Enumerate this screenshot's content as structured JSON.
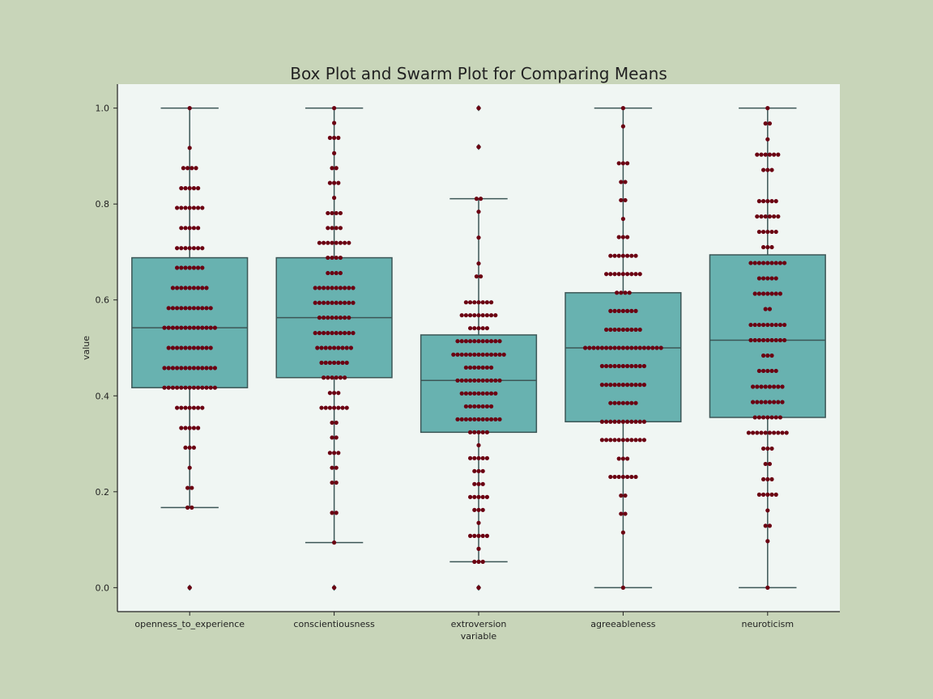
{
  "colors": {
    "background": "#c8d5b9",
    "plot_area": "#f0f6f3",
    "box_fill": "#68b2b0",
    "box_edge": "#3c5656",
    "dot": "#6b0012",
    "axis": "#222222"
  },
  "chart_data": {
    "type": "box+swarm",
    "title": "Box Plot and Swarm Plot for Comparing Means",
    "xlabel": "variable",
    "ylabel": "value",
    "ylim": [
      -0.05,
      1.05
    ],
    "yticks": [
      0.0,
      0.2,
      0.4,
      0.6,
      0.8,
      1.0
    ],
    "ytick_labels": [
      "0.0",
      "0.2",
      "0.4",
      "0.6",
      "0.8",
      "1.0"
    ],
    "grid": false,
    "categories": [
      "openness_to_experience",
      "conscientiousness",
      "extroversion",
      "agreeableness",
      "neuroticism"
    ],
    "boxes": [
      {
        "q1": 0.417,
        "median": 0.542,
        "q3": 0.688,
        "whisker_low": 0.167,
        "whisker_high": 1.0,
        "outliers": [
          0.0
        ]
      },
      {
        "q1": 0.438,
        "median": 0.563,
        "q3": 0.688,
        "whisker_low": 0.094,
        "whisker_high": 1.0,
        "outliers": [
          0.0
        ]
      },
      {
        "q1": 0.324,
        "median": 0.432,
        "q3": 0.527,
        "whisker_low": 0.054,
        "whisker_high": 0.811,
        "outliers": [
          0.0,
          0.919,
          1.0
        ]
      },
      {
        "q1": 0.346,
        "median": 0.5,
        "q3": 0.615,
        "whisker_low": 0.0,
        "whisker_high": 1.0,
        "outliers": []
      },
      {
        "q1": 0.355,
        "median": 0.516,
        "q3": 0.694,
        "whisker_low": 0.0,
        "whisker_high": 1.0,
        "outliers": []
      }
    ],
    "swarm_points": [
      [
        [
          1.0,
          1
        ],
        [
          0.917,
          1
        ],
        [
          0.875,
          4
        ],
        [
          0.833,
          5
        ],
        [
          0.792,
          7
        ],
        [
          0.75,
          5
        ],
        [
          0.708,
          7
        ],
        [
          0.667,
          7
        ],
        [
          0.625,
          9
        ],
        [
          0.583,
          11
        ],
        [
          0.542,
          13
        ],
        [
          0.5,
          11
        ],
        [
          0.458,
          13
        ],
        [
          0.417,
          13
        ],
        [
          0.375,
          7
        ],
        [
          0.333,
          5
        ],
        [
          0.292,
          3
        ],
        [
          0.25,
          1
        ],
        [
          0.208,
          2
        ],
        [
          0.167,
          2
        ],
        [
          0.0,
          1
        ]
      ],
      [
        [
          1.0,
          1
        ],
        [
          0.969,
          1
        ],
        [
          0.938,
          3
        ],
        [
          0.906,
          1
        ],
        [
          0.875,
          2
        ],
        [
          0.844,
          3
        ],
        [
          0.813,
          1
        ],
        [
          0.781,
          4
        ],
        [
          0.75,
          4
        ],
        [
          0.719,
          8
        ],
        [
          0.688,
          4
        ],
        [
          0.656,
          4
        ],
        [
          0.625,
          10
        ],
        [
          0.594,
          10
        ],
        [
          0.563,
          8
        ],
        [
          0.531,
          10
        ],
        [
          0.5,
          9
        ],
        [
          0.469,
          7
        ],
        [
          0.438,
          6
        ],
        [
          0.406,
          3
        ],
        [
          0.375,
          7
        ],
        [
          0.344,
          2
        ],
        [
          0.313,
          2
        ],
        [
          0.281,
          3
        ],
        [
          0.25,
          2
        ],
        [
          0.219,
          2
        ],
        [
          0.156,
          2
        ],
        [
          0.094,
          1
        ],
        [
          0.0,
          1
        ]
      ],
      [
        [
          1.0,
          1
        ],
        [
          0.919,
          1
        ],
        [
          0.811,
          2
        ],
        [
          0.784,
          1
        ],
        [
          0.73,
          1
        ],
        [
          0.676,
          1
        ],
        [
          0.649,
          2
        ],
        [
          0.595,
          7
        ],
        [
          0.568,
          9
        ],
        [
          0.541,
          5
        ],
        [
          0.514,
          11
        ],
        [
          0.486,
          13
        ],
        [
          0.459,
          7
        ],
        [
          0.432,
          11
        ],
        [
          0.405,
          9
        ],
        [
          0.378,
          7
        ],
        [
          0.351,
          11
        ],
        [
          0.324,
          5
        ],
        [
          0.297,
          1
        ],
        [
          0.27,
          5
        ],
        [
          0.243,
          3
        ],
        [
          0.216,
          3
        ],
        [
          0.189,
          5
        ],
        [
          0.162,
          3
        ],
        [
          0.135,
          1
        ],
        [
          0.108,
          5
        ],
        [
          0.081,
          1
        ],
        [
          0.054,
          3
        ],
        [
          0.0,
          1
        ]
      ],
      [
        [
          1.0,
          1
        ],
        [
          0.962,
          1
        ],
        [
          0.885,
          3
        ],
        [
          0.846,
          2
        ],
        [
          0.808,
          2
        ],
        [
          0.769,
          1
        ],
        [
          0.731,
          3
        ],
        [
          0.692,
          7
        ],
        [
          0.654,
          9
        ],
        [
          0.615,
          4
        ],
        [
          0.577,
          7
        ],
        [
          0.538,
          9
        ],
        [
          0.5,
          19
        ],
        [
          0.462,
          11
        ],
        [
          0.423,
          11
        ],
        [
          0.385,
          7
        ],
        [
          0.346,
          11
        ],
        [
          0.308,
          11
        ],
        [
          0.269,
          3
        ],
        [
          0.231,
          7
        ],
        [
          0.192,
          2
        ],
        [
          0.154,
          2
        ],
        [
          0.115,
          1
        ],
        [
          0.0,
          1
        ]
      ],
      [
        [
          1.0,
          1
        ],
        [
          0.968,
          2
        ],
        [
          0.935,
          1
        ],
        [
          0.903,
          6
        ],
        [
          0.871,
          3
        ],
        [
          0.806,
          5
        ],
        [
          0.774,
          6
        ],
        [
          0.742,
          5
        ],
        [
          0.71,
          3
        ],
        [
          0.677,
          9
        ],
        [
          0.645,
          5
        ],
        [
          0.613,
          7
        ],
        [
          0.581,
          2
        ],
        [
          0.548,
          9
        ],
        [
          0.516,
          9
        ],
        [
          0.484,
          3
        ],
        [
          0.452,
          5
        ],
        [
          0.419,
          8
        ],
        [
          0.387,
          8
        ],
        [
          0.355,
          7
        ],
        [
          0.323,
          10
        ],
        [
          0.29,
          3
        ],
        [
          0.258,
          2
        ],
        [
          0.226,
          3
        ],
        [
          0.194,
          5
        ],
        [
          0.161,
          1
        ],
        [
          0.129,
          2
        ],
        [
          0.097,
          1
        ],
        [
          0.0,
          1
        ]
      ]
    ]
  }
}
